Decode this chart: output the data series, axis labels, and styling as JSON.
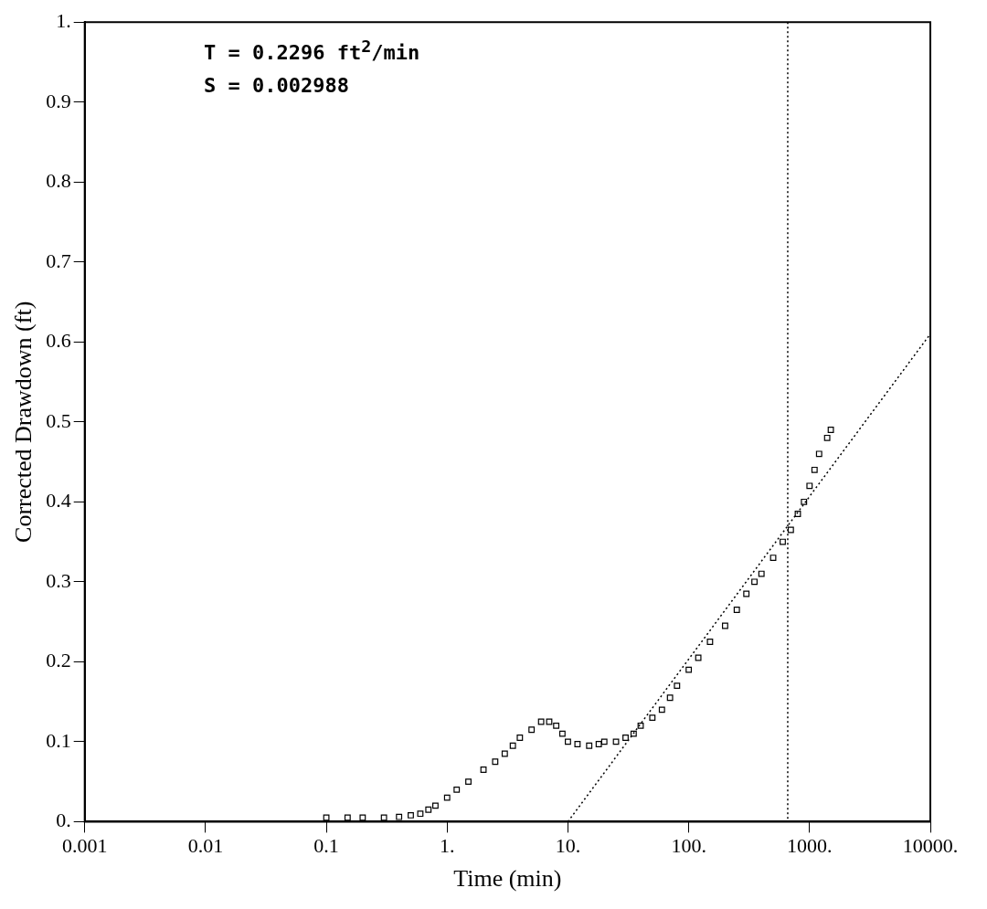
{
  "chart_data": {
    "type": "scatter",
    "xlabel": "Time (min)",
    "ylabel": "Corrected Drawdown (ft)",
    "log": "x",
    "grid": false,
    "legend": false,
    "marker": "square",
    "annotations": [
      "T = 0.2296 ft$^{2}$/min",
      "S = 0.002988"
    ],
    "xlim": [
      0.001,
      10000
    ],
    "xticks": [
      {
        "value": 0.001,
        "label": "0.001"
      },
      {
        "value": 0.01,
        "label": "0.01"
      },
      {
        "value": 0.1,
        "label": "0.1"
      },
      {
        "value": 1,
        "label": "1."
      },
      {
        "value": 10,
        "label": "10."
      },
      {
        "value": 100,
        "label": "100."
      },
      {
        "value": 1000,
        "label": "1000."
      },
      {
        "value": 10000,
        "label": "10000."
      }
    ],
    "ylim": [
      0,
      1
    ],
    "yticks": [
      {
        "value": 0,
        "label": "0."
      },
      0.1,
      0.2,
      0.3,
      0.4,
      0.5,
      0.6,
      0.7,
      0.8,
      0.9,
      {
        "value": 1,
        "label": "1."
      }
    ],
    "ref_lines": [
      {
        "axis": "x",
        "value": 660,
        "line_style": "dotted",
        "color": "#000000"
      }
    ],
    "series": [
      {
        "color": "#000000",
        "x": [
          0.1,
          0.15,
          0.2,
          0.3,
          0.4,
          0.5,
          0.6,
          0.7,
          0.8,
          1,
          1.2,
          1.5,
          2,
          2.5,
          3,
          3.5,
          4,
          5,
          6,
          7,
          8,
          9,
          10,
          12,
          15,
          18,
          20,
          25,
          30,
          35,
          40,
          50,
          60,
          70,
          80,
          100,
          120,
          150,
          200,
          250,
          300,
          350,
          400,
          500,
          600,
          700,
          800,
          900,
          1000,
          1100,
          1200,
          1400,
          1500
        ],
        "values": [
          0.005,
          0.005,
          0.005,
          0.005,
          0.006,
          0.008,
          0.01,
          0.015,
          0.02,
          0.03,
          0.04,
          0.05,
          0.065,
          0.075,
          0.085,
          0.095,
          0.105,
          0.115,
          0.125,
          0.125,
          0.12,
          0.11,
          0.1,
          0.097,
          0.095,
          0.097,
          0.1,
          0.1,
          0.105,
          0.11,
          0.12,
          0.13,
          0.14,
          0.155,
          0.17,
          0.19,
          0.205,
          0.225,
          0.245,
          0.265,
          0.285,
          0.3,
          0.31,
          0.33,
          0.35,
          0.365,
          0.385,
          0.4,
          0.42,
          0.44,
          0.46,
          0.48,
          0.49
        ]
      },
      {
        "type": "line",
        "color": "#000000",
        "line_style": "dotted",
        "marker": "none",
        "x": [
          10,
          10000
        ],
        "values": [
          0,
          0.61
        ]
      }
    ]
  }
}
